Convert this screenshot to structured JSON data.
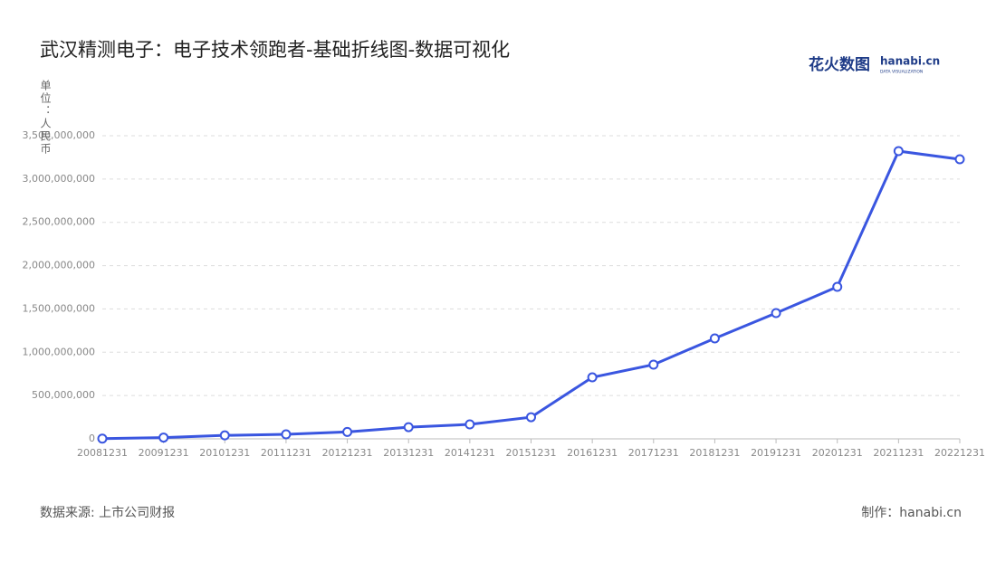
{
  "chart_data": {
    "type": "line",
    "title": "武汉精测电子：电子技术领跑者-基础折线图-数据可视化",
    "y_label": "单位：人民币",
    "source": "数据来源: 上市公司财报",
    "credit": "制作：hanabi.cn",
    "logo": {
      "brand": "花火数图",
      "site": "hanabi.cn",
      "tagline": "DATA VISUALIZATION"
    },
    "categories": [
      "20081231",
      "20091231",
      "20101231",
      "20111231",
      "20121231",
      "20131231",
      "20141231",
      "20151231",
      "20161231",
      "20171231",
      "20181231",
      "20191231",
      "20201231",
      "20211231",
      "20221231"
    ],
    "values": [
      3000000,
      15000000,
      40000000,
      52000000,
      80000000,
      135000000,
      167000000,
      250000000,
      710000000,
      857000000,
      1160000000,
      1452000000,
      1755000000,
      3322000000,
      3228000000
    ],
    "color": "#3a56e0",
    "ylim": [
      0,
      3500000000
    ],
    "yticks": [
      0,
      {
        "value": 500000000,
        "label": "500,000,000"
      },
      {
        "value": 1000000000,
        "label": "1,000,000,000"
      },
      {
        "value": 1500000000,
        "label": "1,500,000,000"
      },
      {
        "value": 2000000000,
        "label": "2,000,000,000"
      },
      {
        "value": 2500000000,
        "label": "2,500,000,000"
      },
      {
        "value": 3000000000,
        "label": "3,000,000,000"
      },
      {
        "value": 3500000000,
        "label": "3,500,000,000"
      }
    ],
    "grid": true
  }
}
